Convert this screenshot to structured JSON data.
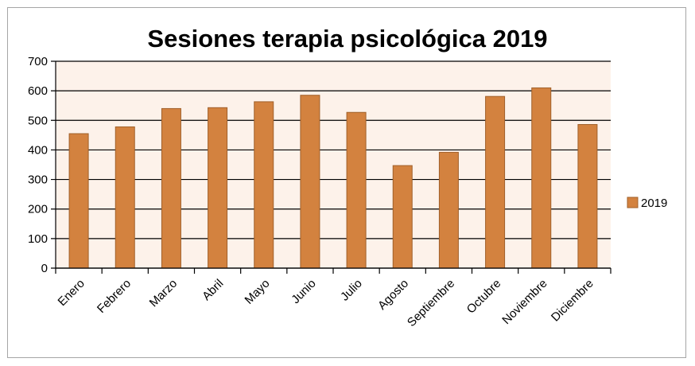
{
  "chart_data": {
    "type": "bar",
    "title": "Sesiones terapia psicológica 2019",
    "xlabel": "",
    "ylabel": "",
    "categories": [
      "Enero",
      "Febrero",
      "Marzo",
      "Abril",
      "Mayo",
      "Junio",
      "Julio",
      "Agosto",
      "Septiembre",
      "Octubre",
      "Noviembre",
      "Diciembre"
    ],
    "series": [
      {
        "name": "2019",
        "values": [
          455,
          478,
          540,
          543,
          563,
          585,
          527,
          347,
          392,
          581,
          610,
          486
        ]
      }
    ],
    "ylim": [
      0,
      700
    ],
    "yticks": [
      0,
      100,
      200,
      300,
      400,
      500,
      600,
      700
    ],
    "grid": "horizontal",
    "legend_position": "right",
    "colors": {
      "bar": "#d3823f",
      "bar_edge": "#a0602a",
      "plot_background": "#fdf2ea",
      "gridline": "#000000",
      "frame_border": "#a6a6a6"
    }
  }
}
